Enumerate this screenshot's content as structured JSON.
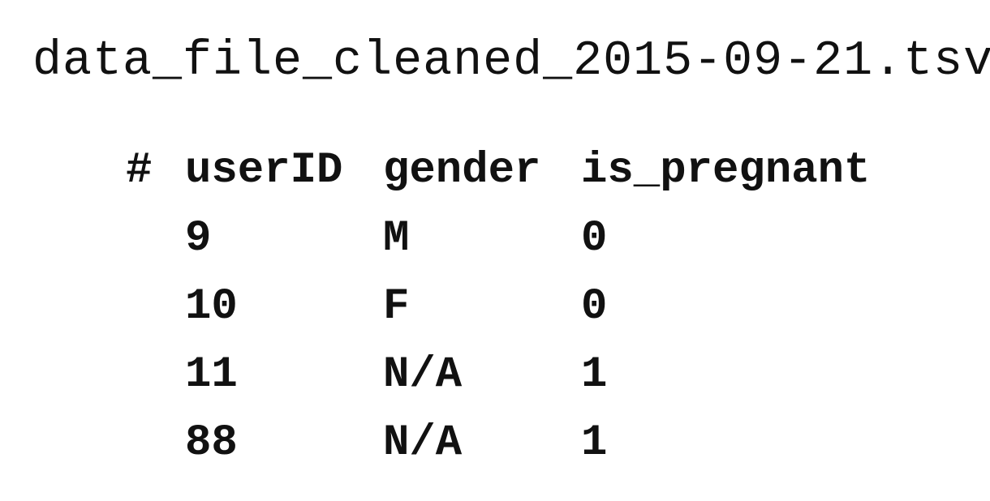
{
  "file": {
    "name": "data_file_cleaned_2015-09-21.tsv",
    "suffix": ":"
  },
  "table": {
    "comment_marker": "#",
    "columns": [
      "userID",
      "gender",
      "is_pregnant"
    ],
    "rows": [
      [
        "9",
        "M",
        "0"
      ],
      [
        "10",
        "F",
        "0"
      ],
      [
        "11",
        "N/A",
        "1"
      ],
      [
        "88",
        "N/A",
        "1"
      ]
    ]
  }
}
